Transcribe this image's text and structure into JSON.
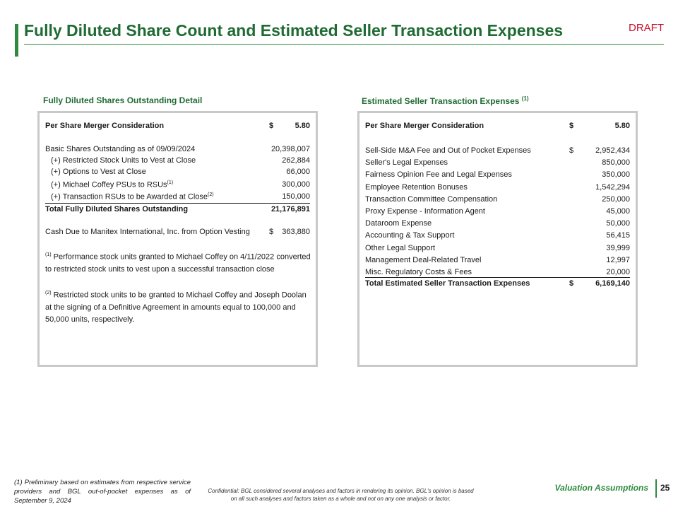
{
  "header": {
    "title": "Fully Diluted Share Count and Estimated Seller Transaction Expenses",
    "status": "DRAFT",
    "accent_color": "#2e8b3e",
    "status_color": "#c8102e"
  },
  "left": {
    "section_title": "Fully Diluted Shares Outstanding Detail",
    "per_share": {
      "label": "Per Share Merger Consideration",
      "currency": "$",
      "value": "5.80"
    },
    "basic": {
      "label": "Basic Shares Outstanding as of 09/09/2024",
      "value": "20,398,007"
    },
    "rsu": {
      "label": "(+) Restricted Stock Units to Vest at Close",
      "value": "262,884"
    },
    "options": {
      "label": "(+) Options to Vest at Close",
      "value": "66,000"
    },
    "psu": {
      "label": "(+) Michael Coffey PSUs to RSUs",
      "sup": "(1)",
      "value": "300,000"
    },
    "txn_rsu": {
      "label": "(+) Transaction RSUs to be Awarded at Close",
      "sup": "(2)",
      "value": "150,000"
    },
    "total": {
      "label": "Total Fully Diluted Shares Outstanding",
      "value": "21,176,891"
    },
    "cash": {
      "label": "Cash Due to Manitex International, Inc. from Option Vesting",
      "currency": "$",
      "value": "363,880"
    },
    "note1": {
      "marker": "(1)",
      "text": " Performance stock units granted to Michael Coffey on 4/11/2022 converted to restricted stock units to vest upon a successful transaction close"
    },
    "note2": {
      "marker": "(2)",
      "text": " Restricted stock units to be granted to Michael Coffey and Joseph Doolan at the signing of a Definitive Agreement in amounts equal to 100,000 and 50,000 units, respectively."
    }
  },
  "right": {
    "section_title": "Estimated Seller Transaction Expenses",
    "section_sup": "(1)",
    "per_share": {
      "label": "Per Share Merger Consideration",
      "currency": "$",
      "value": "5.80"
    },
    "expenses": [
      {
        "label": "Sell-Side M&A Fee and Out of Pocket Expenses",
        "currency": "$",
        "value": "2,952,434"
      },
      {
        "label": "Seller's Legal Expenses",
        "currency": "",
        "value": "850,000"
      },
      {
        "label": "Fairness Opinion Fee and Legal Expenses",
        "currency": "",
        "value": "350,000"
      },
      {
        "label": "Employee Retention Bonuses",
        "currency": "",
        "value": "1,542,294"
      },
      {
        "label": "Transaction Committee Compensation",
        "currency": "",
        "value": "250,000"
      },
      {
        "label": "Proxy Expense - Information Agent",
        "currency": "",
        "value": "45,000"
      },
      {
        "label": "Dataroom Expense",
        "currency": "",
        "value": "50,000"
      },
      {
        "label": "Accounting & Tax Support",
        "currency": "",
        "value": "56,415"
      },
      {
        "label": "Other Legal Support",
        "currency": "",
        "value": "39,999"
      },
      {
        "label": "Management Deal-Related Travel",
        "currency": "",
        "value": "12,997"
      },
      {
        "label": "Misc. Regulatory Costs & Fees",
        "currency": "",
        "value": "20,000"
      }
    ],
    "total": {
      "label": "Total Estimated Seller Transaction Expenses",
      "currency": "$",
      "value": "6,169,140"
    }
  },
  "footer": {
    "footnote": "(1) Preliminary based on estimates from respective service providers and BGL out-of-pocket expenses as of September 9, 2024",
    "confidential": "Confidential: BGL considered several analyses and factors in rendering its opinion. BGL's opinion is based on all such analyses and factors taken as a whole and not on any one analysis or factor.",
    "section_label": "Valuation Assumptions",
    "page_number": "25"
  }
}
